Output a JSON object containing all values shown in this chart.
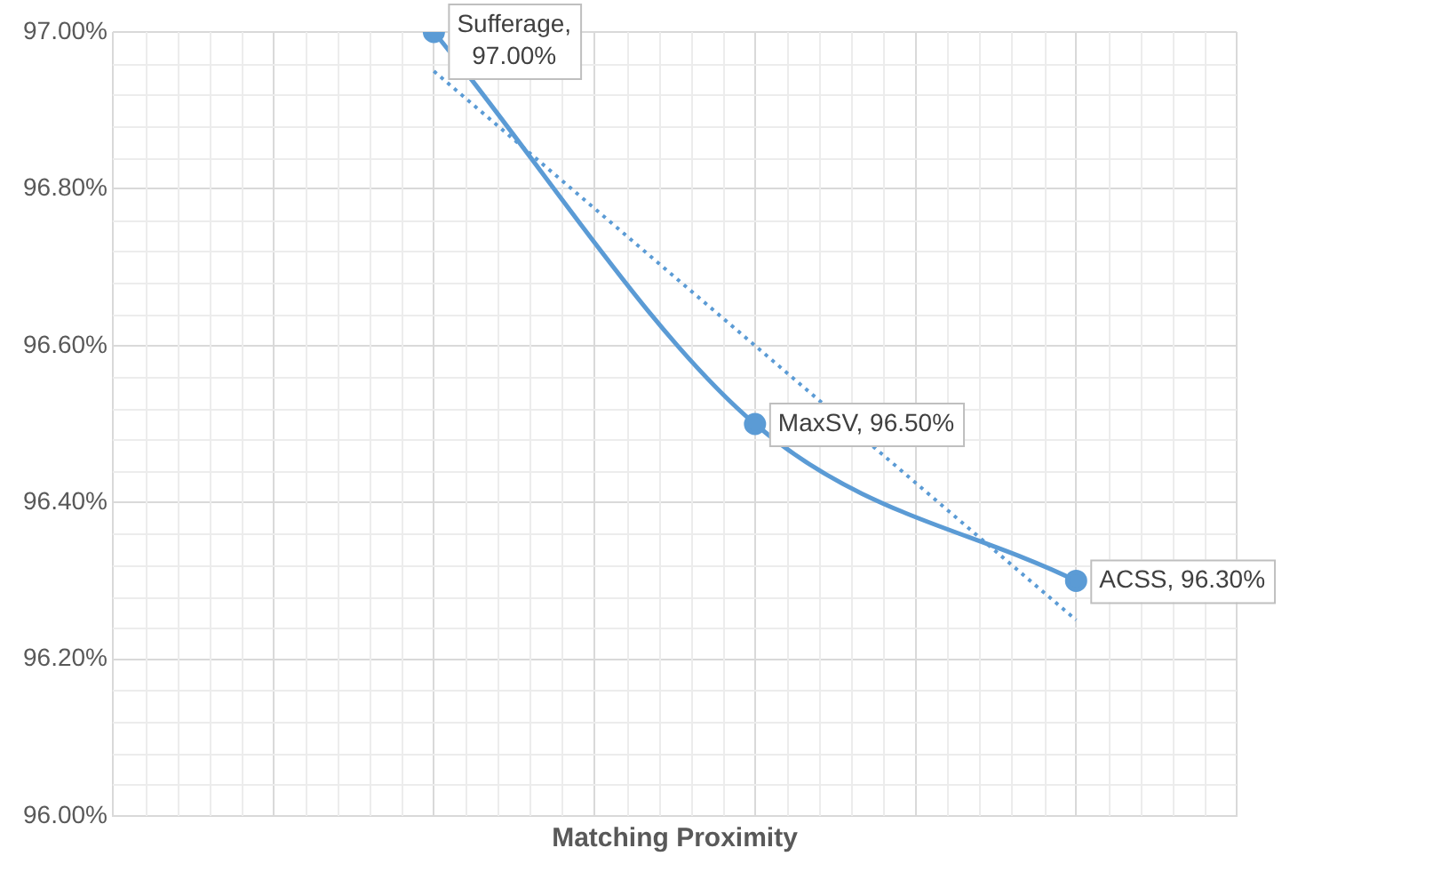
{
  "chart_data": {
    "type": "line",
    "xlabel": "Matching Proximity",
    "categories": [
      null,
      null,
      null
    ],
    "series": [
      {
        "color": "#5b9bd5",
        "values": [
          97.0,
          96.5,
          96.3
        ],
        "value_labels": [
          "Sufferage, 97.00%",
          "MaxSV, 96.50%",
          "ACSS, 96.30%"
        ],
        "marker": "circle",
        "line_style": "solid"
      },
      {
        "color": "#5b9bd5",
        "values": [
          96.95,
          null,
          96.25
        ],
        "marker": "none",
        "line_style": "dotted"
      }
    ],
    "ylim": [
      96,
      97
    ],
    "yticks": [
      {
        "value": 96,
        "label": "96.00%"
      },
      {
        "value": 96.2,
        "label": "96.20%"
      },
      {
        "value": 96.4,
        "label": "96.40%"
      },
      {
        "value": 96.6,
        "label": "96.60%"
      },
      {
        "value": 96.8,
        "label": "96.80%"
      },
      {
        "value": 97,
        "label": "97.00%"
      }
    ],
    "grid": true,
    "legend": false,
    "tick_labels": "y"
  }
}
